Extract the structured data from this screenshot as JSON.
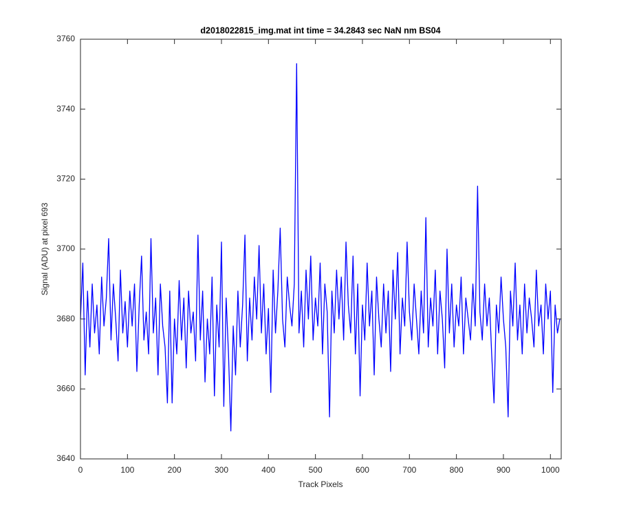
{
  "chart_data": {
    "type": "line",
    "title": "d2018022815_img.mat int time = 34.2843 sec  NaN nm BS04",
    "x_label": "Track Pixels",
    "y_label": "Signal (ADU) at pixel 693",
    "xlim": [
      0,
      1023
    ],
    "ylim": [
      3640,
      3760
    ],
    "xticks": [
      0,
      100,
      200,
      300,
      400,
      500,
      600,
      700,
      800,
      900,
      1000
    ],
    "yticks": [
      3640,
      3660,
      3680,
      3700,
      3720,
      3740,
      3760
    ],
    "grid": false,
    "x": [
      0,
      5,
      10,
      15,
      20,
      25,
      30,
      35,
      40,
      45,
      50,
      55,
      60,
      65,
      70,
      75,
      80,
      85,
      90,
      95,
      100,
      105,
      110,
      115,
      120,
      125,
      130,
      135,
      140,
      145,
      150,
      155,
      160,
      165,
      170,
      175,
      180,
      185,
      190,
      195,
      200,
      205,
      210,
      215,
      220,
      225,
      230,
      235,
      240,
      245,
      250,
      255,
      260,
      265,
      270,
      275,
      280,
      285,
      290,
      295,
      300,
      305,
      310,
      315,
      320,
      325,
      330,
      335,
      340,
      345,
      350,
      355,
      360,
      365,
      370,
      375,
      380,
      385,
      390,
      395,
      400,
      405,
      410,
      415,
      420,
      425,
      430,
      435,
      440,
      445,
      450,
      455,
      460,
      465,
      470,
      475,
      480,
      485,
      490,
      495,
      500,
      505,
      510,
      515,
      520,
      525,
      530,
      535,
      540,
      545,
      550,
      555,
      560,
      565,
      570,
      575,
      580,
      585,
      590,
      595,
      600,
      605,
      610,
      615,
      620,
      625,
      630,
      635,
      640,
      645,
      650,
      655,
      660,
      665,
      670,
      675,
      680,
      685,
      690,
      695,
      700,
      705,
      710,
      715,
      720,
      725,
      730,
      735,
      740,
      745,
      750,
      755,
      760,
      765,
      770,
      775,
      780,
      785,
      790,
      795,
      800,
      805,
      810,
      815,
      820,
      825,
      830,
      835,
      840,
      845,
      850,
      855,
      860,
      865,
      870,
      875,
      880,
      885,
      890,
      895,
      900,
      905,
      910,
      915,
      920,
      925,
      930,
      935,
      940,
      945,
      950,
      955,
      960,
      965,
      970,
      975,
      980,
      985,
      990,
      995,
      1000,
      1005,
      1010,
      1015,
      1020
    ],
    "series": [
      {
        "color": "#0000ff",
        "values": [
          3680,
          3696,
          3664,
          3688,
          3672,
          3690,
          3676,
          3684,
          3670,
          3692,
          3678,
          3686,
          3703,
          3674,
          3690,
          3680,
          3668,
          3694,
          3676,
          3685,
          3672,
          3688,
          3678,
          3690,
          3665,
          3684,
          3698,
          3674,
          3682,
          3670,
          3703,
          3676,
          3686,
          3664,
          3690,
          3678,
          3672,
          3656,
          3688,
          3656,
          3680,
          3670,
          3691,
          3674,
          3686,
          3666,
          3688,
          3676,
          3682,
          3668,
          3704,
          3674,
          3688,
          3662,
          3680,
          3670,
          3692,
          3658,
          3684,
          3672,
          3702,
          3655,
          3686,
          3670,
          3648,
          3678,
          3664,
          3688,
          3672,
          3684,
          3704,
          3668,
          3686,
          3674,
          3692,
          3680,
          3701,
          3676,
          3690,
          3670,
          3683,
          3659,
          3694,
          3676,
          3688,
          3706,
          3680,
          3672,
          3692,
          3684,
          3678,
          3690,
          3753,
          3676,
          3688,
          3672,
          3694,
          3680,
          3698,
          3674,
          3686,
          3678,
          3696,
          3670,
          3690,
          3682,
          3652,
          3688,
          3676,
          3694,
          3680,
          3692,
          3674,
          3702,
          3684,
          3676,
          3698,
          3670,
          3690,
          3658,
          3684,
          3674,
          3696,
          3678,
          3688,
          3664,
          3692,
          3680,
          3672,
          3690,
          3676,
          3688,
          3665,
          3694,
          3680,
          3699,
          3670,
          3686,
          3678,
          3702,
          3682,
          3674,
          3690,
          3680,
          3670,
          3688,
          3676,
          3709,
          3672,
          3686,
          3678,
          3694,
          3670,
          3688,
          3680,
          3666,
          3700,
          3676,
          3690,
          3672,
          3684,
          3678,
          3692,
          3670,
          3686,
          3680,
          3674,
          3690,
          3678,
          3718,
          3682,
          3674,
          3690,
          3678,
          3686,
          3670,
          3656,
          3684,
          3676,
          3692,
          3680,
          3672,
          3652,
          3688,
          3678,
          3696,
          3674,
          3684,
          3670,
          3690,
          3676,
          3686,
          3680,
          3672,
          3694,
          3678,
          3684,
          3670,
          3690,
          3680,
          3688,
          3659,
          3684,
          3676,
          3680
        ]
      }
    ]
  }
}
